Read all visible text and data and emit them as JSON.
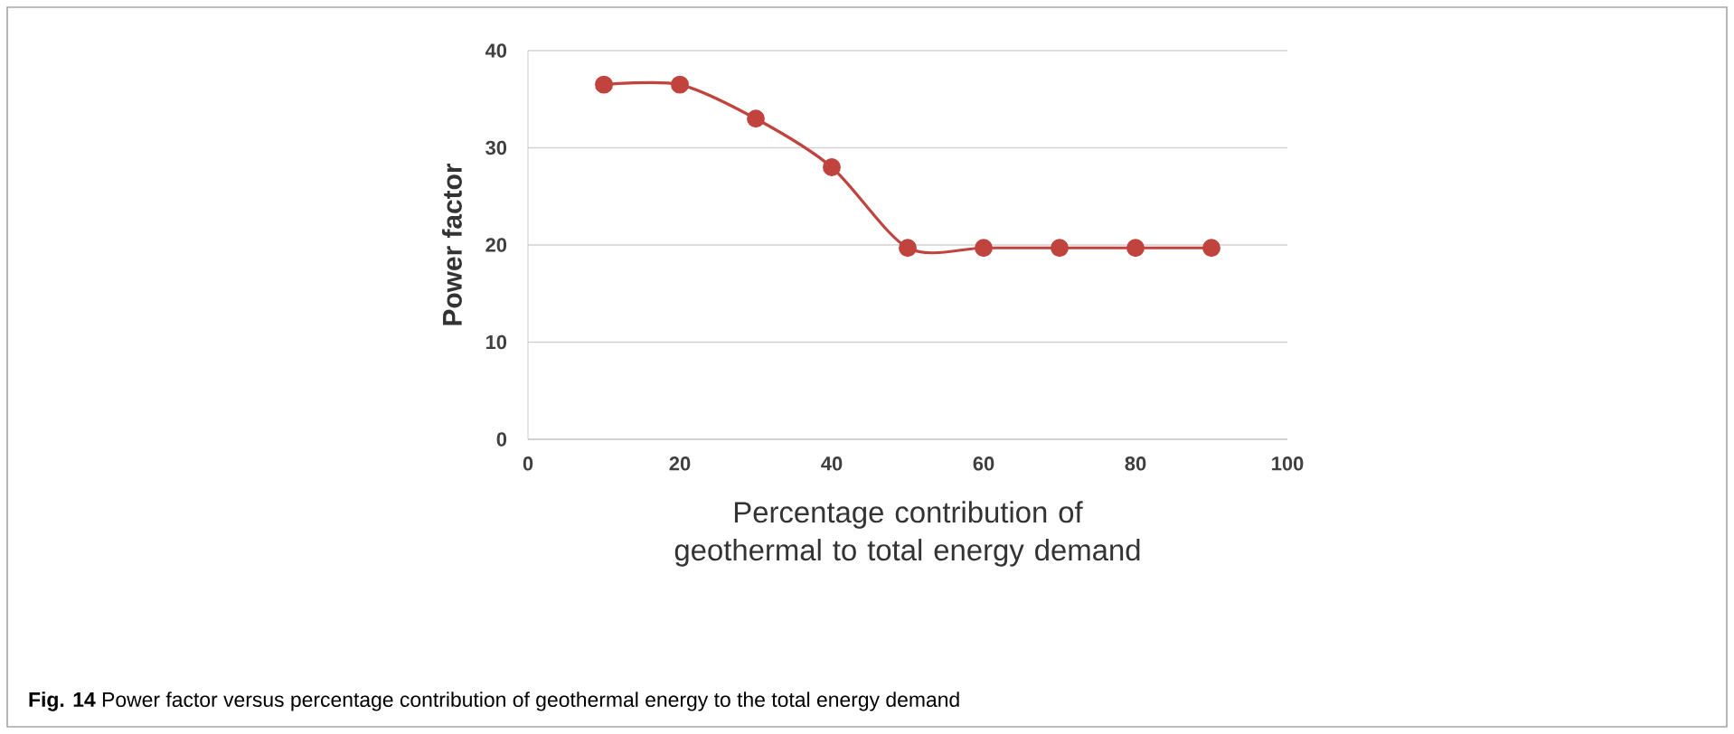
{
  "chart_data": {
    "type": "line",
    "xlabel": "Percentage contribution of geothermal to total energy demand",
    "ylabel": "Power factor",
    "annotations": [
      "**Fig. 14** Power factor versus percentage contribution of geothermal energy to the total energy demand"
    ],
    "x": [
      10,
      20,
      30,
      40,
      50,
      60,
      70,
      80,
      90
    ],
    "series": [
      {
        "color": "#c0433e",
        "values": [
          36.5,
          36.5,
          33,
          28,
          19.7,
          19.7,
          19.7,
          19.7,
          19.7
        ]
      }
    ],
    "xlim": [
      0,
      100
    ],
    "xticks": [
      0,
      20,
      40,
      60,
      80,
      100
    ],
    "ylim": [
      0,
      40
    ],
    "yticks": [
      0,
      10,
      20,
      30,
      40
    ],
    "grid": "y",
    "marker": "circle",
    "line_style": "solid"
  }
}
